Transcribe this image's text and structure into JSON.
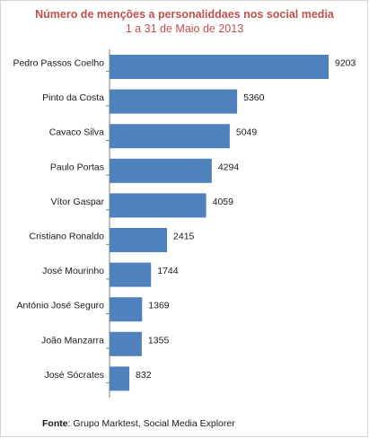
{
  "chart_data": {
    "type": "bar",
    "orientation": "horizontal",
    "title": "Número de menções a personaliddaes nos social media",
    "subtitle": "1 a 31 de Maio de 2013",
    "categories": [
      "Pedro Passos Coelho",
      "Pinto da Costa",
      "Cavaco Silva",
      "Paulo Portas",
      "Vítor Gaspar",
      "Cristiano Ronaldo",
      "José Mourinho",
      "António José Seguro",
      "João Manzarra",
      "José Sócrates"
    ],
    "values": [
      9203,
      5360,
      5049,
      4294,
      4059,
      2415,
      1744,
      1369,
      1355,
      832
    ],
    "value_labels": [
      "9203",
      "5360",
      "5049",
      "4294",
      "4059",
      "2415",
      "1744",
      "1369",
      "1355",
      "832"
    ],
    "xlim": [
      0,
      9203
    ],
    "grid": false,
    "colors": {
      "bar": "#4f81bd",
      "axis": "#808080",
      "title": "#c0504d"
    }
  },
  "source": {
    "label": "Fonte",
    "text": ": Grupo Marktest, Social Media Explorer"
  }
}
